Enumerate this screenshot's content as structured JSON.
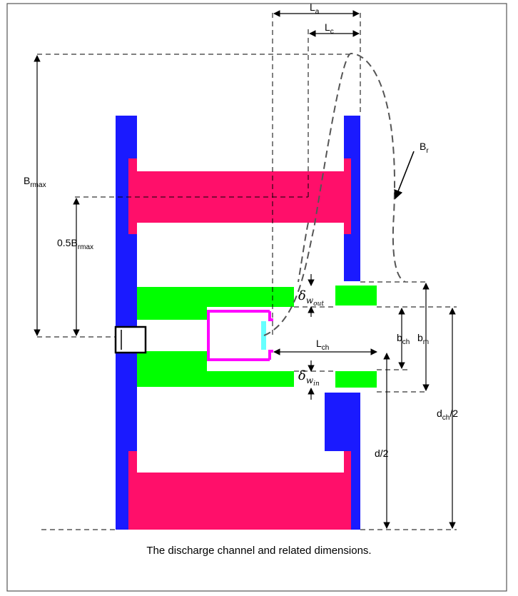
{
  "caption": "The discharge channel and related dimensions.",
  "labels": {
    "la": {
      "main": "L",
      "sub": "a"
    },
    "lc": {
      "main": "L",
      "sub": "c"
    },
    "br": {
      "main": "B",
      "sub": "r"
    },
    "brmax": {
      "main": "B",
      "sub": "rmax"
    },
    "half_brmax": {
      "main": "0.5B",
      "sub": "rmax"
    },
    "delta_out": {
      "main": "δ",
      "sub": "w",
      "subsub": "out"
    },
    "delta_in": {
      "main": "δ",
      "sub": "w",
      "subsub": "in"
    },
    "lch": {
      "main": "L",
      "sub": "ch"
    },
    "bch": {
      "main": "b",
      "sub": "ch"
    },
    "bm": {
      "main": "b",
      "sub": "m"
    },
    "d2": {
      "main": "d/2"
    },
    "dch2": {
      "main": "d",
      "sub": "ch",
      "tail": "/2"
    }
  },
  "colors": {
    "magnet_pole": "#1a1aff",
    "pink_part": "#ff0f6a",
    "green_part": "#00ff00",
    "anode_outline": "#ff00ff",
    "anode_face": "#66ffff",
    "frame": "#555555"
  }
}
